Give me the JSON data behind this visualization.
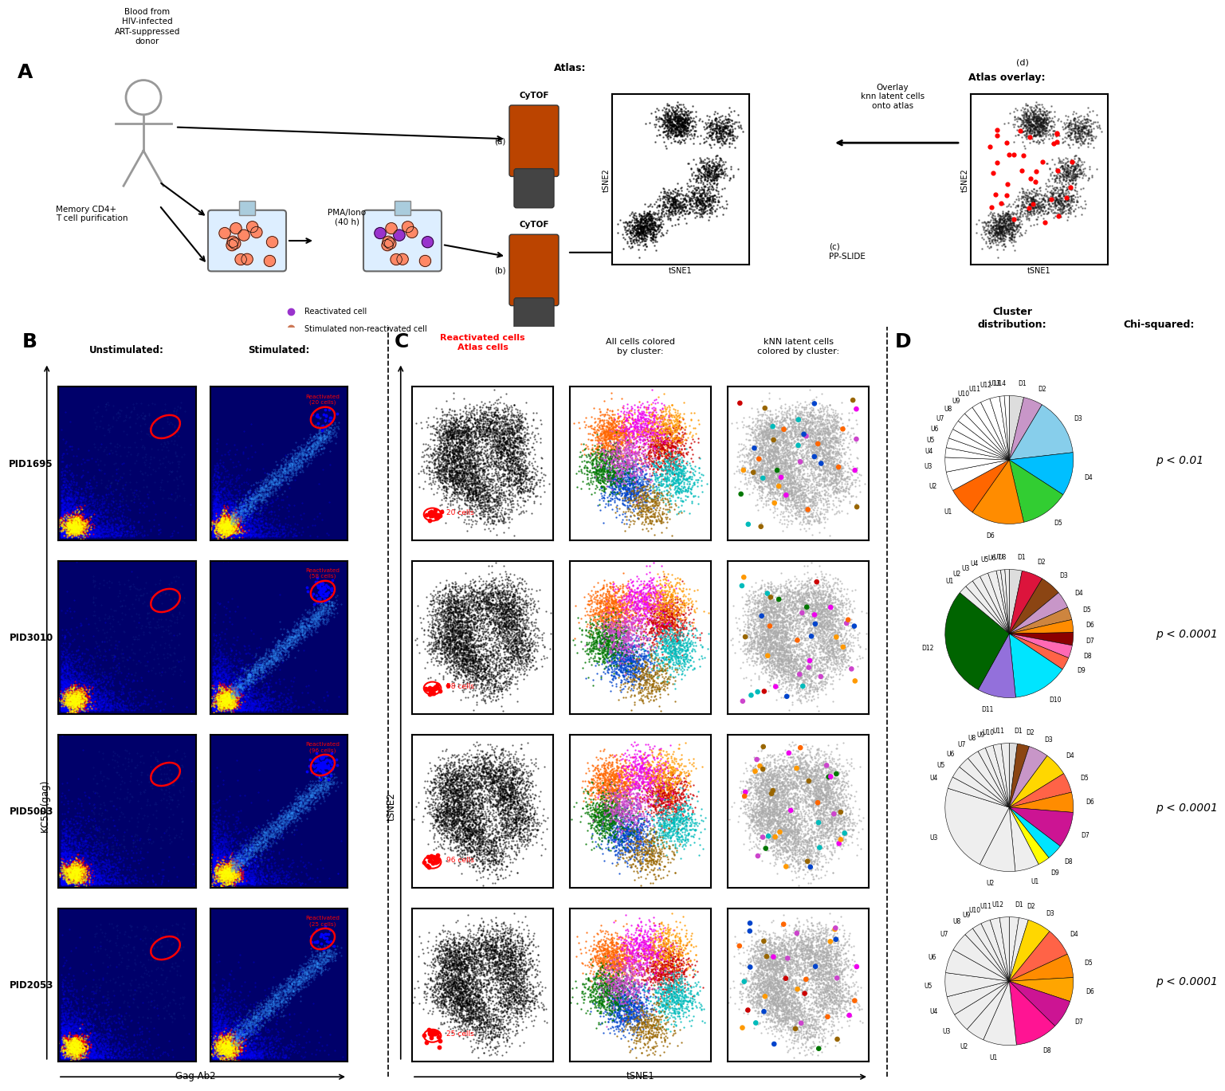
{
  "pid_labels": [
    "PID1695",
    "PID3010",
    "PID5003",
    "PID2053"
  ],
  "cell_counts": [
    20,
    58,
    96,
    25
  ],
  "bg_color": "#ffffff",
  "pie_configs": [
    {
      "slices": [
        [
          "D1",
          0.03,
          "#dddddd"
        ],
        [
          "D2",
          0.04,
          "#c896c8"
        ],
        [
          "D3",
          0.12,
          "#87ceeb"
        ],
        [
          "D4",
          0.09,
          "#00bfff"
        ],
        [
          "D5",
          0.1,
          "#32cd32"
        ],
        [
          "D6",
          0.11,
          "#ff8c00"
        ],
        [
          "U1",
          0.06,
          "#ff6600"
        ],
        [
          "U2",
          0.04,
          "#ffffff"
        ],
        [
          "U3",
          0.03,
          "#ffffff"
        ],
        [
          "U4",
          0.02,
          "#ffffff"
        ],
        [
          "U5",
          0.02,
          "#ffffff"
        ],
        [
          "U6",
          0.02,
          "#ffffff"
        ],
        [
          "U7",
          0.02,
          "#ffffff"
        ],
        [
          "U8",
          0.02,
          "#ffffff"
        ],
        [
          "U9",
          0.02,
          "#ffffff"
        ],
        [
          "U10",
          0.02,
          "#ffffff"
        ],
        [
          "U11",
          0.02,
          "#ffffff"
        ],
        [
          "U12",
          0.02,
          "#ffffff"
        ],
        [
          "U13",
          0.01,
          "#ffffff"
        ],
        [
          "U14",
          0.01,
          "#ffffff"
        ]
      ],
      "p": "p < 0.01"
    },
    {
      "slices": [
        [
          "D1",
          0.03,
          "#dddddd"
        ],
        [
          "D2",
          0.05,
          "#dc143c"
        ],
        [
          "D3",
          0.05,
          "#8b4513"
        ],
        [
          "D4",
          0.04,
          "#c896c8"
        ],
        [
          "D5",
          0.03,
          "#cd853f"
        ],
        [
          "D6",
          0.03,
          "#ff8c00"
        ],
        [
          "D7",
          0.03,
          "#8b0000"
        ],
        [
          "D8",
          0.03,
          "#ff69b4"
        ],
        [
          "D9",
          0.03,
          "#ff6347"
        ],
        [
          "D10",
          0.13,
          "#00e5ff"
        ],
        [
          "D11",
          0.09,
          "#9370db"
        ],
        [
          "D12",
          0.26,
          "#006400"
        ],
        [
          "U1",
          0.02,
          "#eeeeee"
        ],
        [
          "U2",
          0.02,
          "#eeeeee"
        ],
        [
          "U3",
          0.02,
          "#eeeeee"
        ],
        [
          "U4",
          0.02,
          "#eeeeee"
        ],
        [
          "U5",
          0.02,
          "#eeeeee"
        ],
        [
          "U6",
          0.01,
          "#eeeeee"
        ],
        [
          "U7",
          0.01,
          "#eeeeee"
        ],
        [
          "U8",
          0.01,
          "#eeeeee"
        ]
      ],
      "p": "p < 0.0001"
    },
    {
      "slices": [
        [
          "D1",
          0.02,
          "#dddddd"
        ],
        [
          "D2",
          0.03,
          "#8b4513"
        ],
        [
          "D3",
          0.05,
          "#c896c8"
        ],
        [
          "D4",
          0.06,
          "#ffd700"
        ],
        [
          "D5",
          0.05,
          "#ff6347"
        ],
        [
          "D6",
          0.05,
          "#ff8c00"
        ],
        [
          "D7",
          0.09,
          "#cc1493"
        ],
        [
          "D8",
          0.04,
          "#00e5ff"
        ],
        [
          "D9",
          0.03,
          "#ffff00"
        ],
        [
          "U1",
          0.06,
          "#eeeeee"
        ],
        [
          "U2",
          0.09,
          "#eeeeee"
        ],
        [
          "U3",
          0.22,
          "#eeeeee"
        ],
        [
          "U4",
          0.03,
          "#eeeeee"
        ],
        [
          "U5",
          0.03,
          "#eeeeee"
        ],
        [
          "U6",
          0.03,
          "#eeeeee"
        ],
        [
          "U7",
          0.03,
          "#eeeeee"
        ],
        [
          "U8",
          0.02,
          "#eeeeee"
        ],
        [
          "U9",
          0.02,
          "#eeeeee"
        ],
        [
          "U10",
          0.02,
          "#eeeeee"
        ],
        [
          "U11",
          0.02,
          "#eeeeee"
        ]
      ],
      "p": "p < 0.0001"
    },
    {
      "slices": [
        [
          "D1",
          0.02,
          "#eeeeee"
        ],
        [
          "D2",
          0.02,
          "#eeeeee"
        ],
        [
          "D3",
          0.05,
          "#ffd700"
        ],
        [
          "D4",
          0.06,
          "#ff6347"
        ],
        [
          "D5",
          0.05,
          "#ff8c00"
        ],
        [
          "D6",
          0.05,
          "#ffa500"
        ],
        [
          "D7",
          0.06,
          "#cc1493"
        ],
        [
          "D8",
          0.09,
          "#ff1493"
        ],
        [
          "U1",
          0.07,
          "#eeeeee"
        ],
        [
          "U2",
          0.04,
          "#eeeeee"
        ],
        [
          "U3",
          0.04,
          "#eeeeee"
        ],
        [
          "U4",
          0.04,
          "#eeeeee"
        ],
        [
          "U5",
          0.05,
          "#eeeeee"
        ],
        [
          "U6",
          0.05,
          "#eeeeee"
        ],
        [
          "U7",
          0.04,
          "#eeeeee"
        ],
        [
          "U8",
          0.02,
          "#eeeeee"
        ],
        [
          "U9",
          0.02,
          "#eeeeee"
        ],
        [
          "U10",
          0.02,
          "#eeeeee"
        ],
        [
          "U11",
          0.02,
          "#eeeeee"
        ],
        [
          "U12",
          0.02,
          "#eeeeee"
        ]
      ],
      "p": "p < 0.0001"
    }
  ]
}
